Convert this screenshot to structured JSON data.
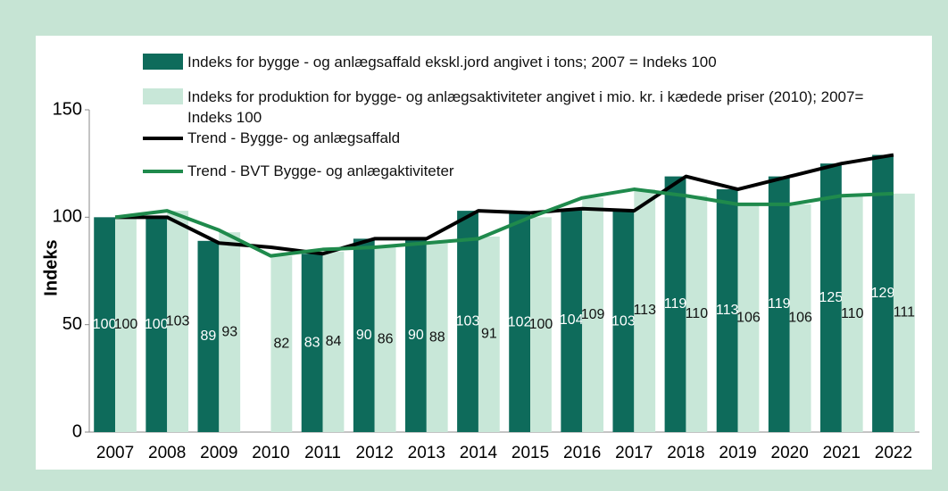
{
  "chart_data": {
    "type": "bar",
    "categories": [
      "2007",
      "2008",
      "2009",
      "2010",
      "2011",
      "2012",
      "2013",
      "2014",
      "2015",
      "2016",
      "2017",
      "2018",
      "2019",
      "2020",
      "2021",
      "2022"
    ],
    "y_label": "Indeks",
    "ylim": [
      0,
      150
    ],
    "yticks": [
      0,
      50,
      100,
      150
    ],
    "series": [
      {
        "name": "Indeks for bygge - og anlægsaffald ekskl.jord angivet i tons; 2007 = Indeks 100",
        "color": "#0e6b5b",
        "kind": "bar",
        "values": [
          100,
          100,
          89,
          null,
          83,
          90,
          90,
          103,
          102,
          104,
          103,
          119,
          113,
          119,
          125,
          129
        ]
      },
      {
        "name": "Indeks for produktion for bygge- og anlægsaktiviteter angivet i mio. kr.  i kædede priser (2010); 2007= Indeks 100",
        "color": "#c8e7d8",
        "kind": "bar",
        "values": [
          100,
          103,
          93,
          82,
          84,
          86,
          88,
          91,
          100,
          109,
          113,
          110,
          106,
          106,
          110,
          111
        ]
      },
      {
        "name": "Trend - Bygge- og anlægsaffald",
        "color": "#000000",
        "kind": "line",
        "values": [
          100,
          100,
          88,
          86,
          83,
          90,
          90,
          103,
          102,
          104,
          103,
          119,
          113,
          119,
          125,
          129
        ]
      },
      {
        "name": "Trend - BVT Bygge- og anlægaktiviteter",
        "color": "#1f8a4c",
        "kind": "line",
        "values": [
          100,
          103,
          94,
          82,
          85,
          86,
          88,
          90,
          100,
          109,
          113,
          110,
          106,
          106,
          110,
          111
        ]
      }
    ]
  }
}
